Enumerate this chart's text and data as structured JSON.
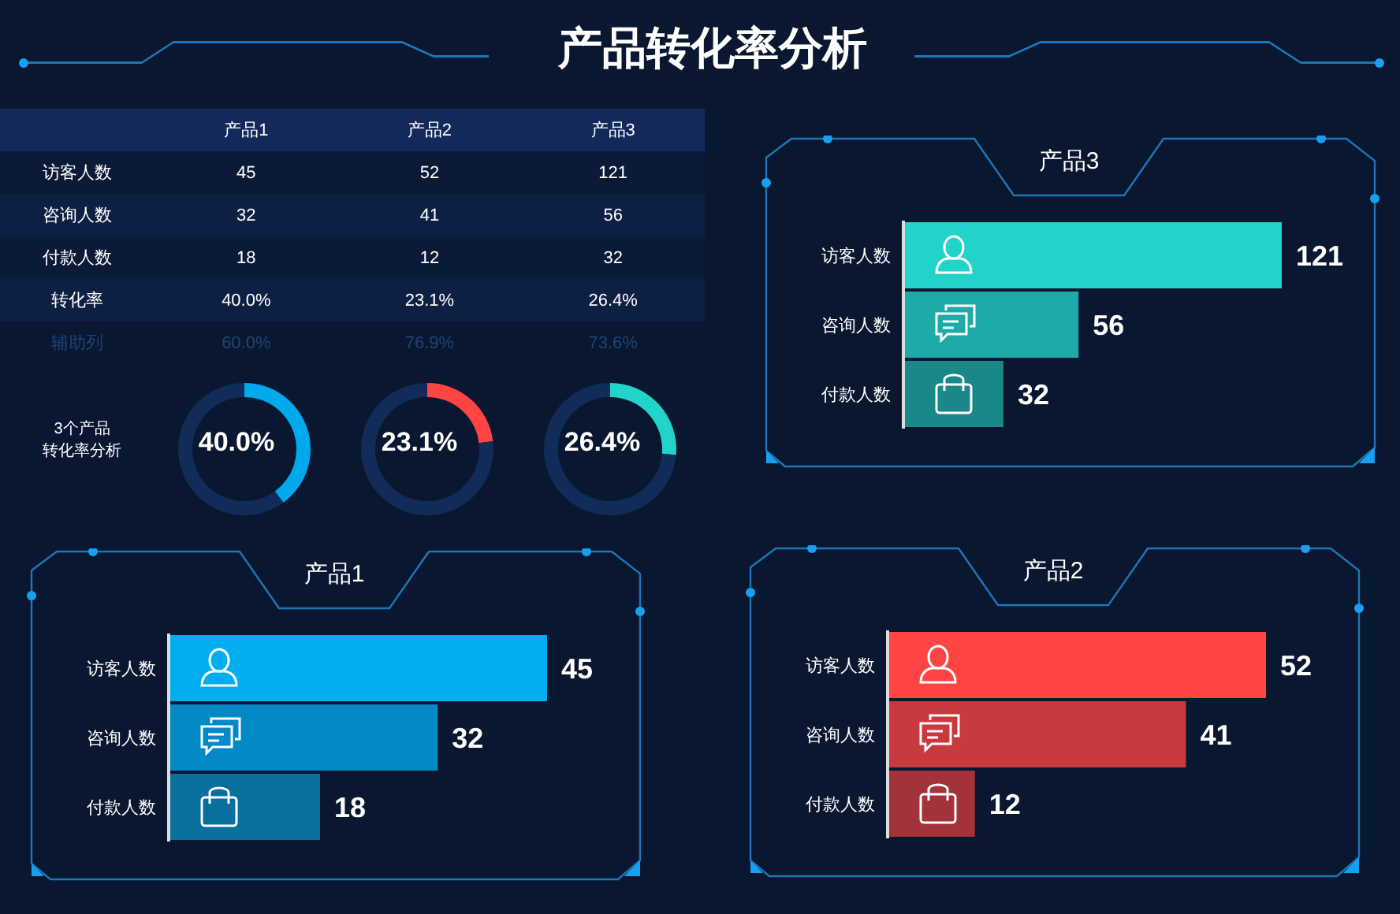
{
  "chart_data": [
    {
      "type": "other",
      "title": "产品转化率分析",
      "categories": [
        "产品1",
        "产品2",
        "产品3"
      ],
      "y_categories": [
        "访客人数",
        "咨询人数",
        "付款人数",
        "转化率",
        "辅助列"
      ],
      "cell_labels": [
        [
          "45",
          "52",
          "121"
        ],
        [
          "32",
          "41",
          "56"
        ],
        [
          "18",
          "12",
          "32"
        ],
        [
          "40.0%",
          "23.1%",
          "26.4%"
        ],
        [
          "60.0%",
          "76.9%",
          "73.6%"
        ]
      ]
    },
    {
      "type": "other",
      "annotations": [
        "3个产品",
        "转化率分析"
      ]
    },
    {
      "type": "donut",
      "categories": [
        null,
        null
      ],
      "values": [
        40.0,
        60.0
      ],
      "colors": [
        "#00a8ec",
        "#112c58"
      ],
      "annotations": [
        "40.0%"
      ]
    },
    {
      "type": "donut",
      "categories": [
        null,
        null
      ],
      "values": [
        23.1,
        76.9
      ],
      "colors": [
        "#ff4444",
        "#112c58"
      ],
      "annotations": [
        "23.1%"
      ]
    },
    {
      "type": "donut",
      "categories": [
        null,
        null
      ],
      "values": [
        26.4,
        73.6
      ],
      "colors": [
        "#22d3c9",
        "#112c58"
      ],
      "annotations": [
        "26.4%"
      ]
    },
    {
      "type": "bar",
      "orientation": "horizontal",
      "title": "产品3",
      "categories": [
        "访客人数",
        "咨询人数",
        "付款人数"
      ],
      "values": [
        121,
        56,
        32
      ],
      "colors": [
        "#22d3c9",
        "#1eaaa8",
        "#1a8788"
      ],
      "data_labels": true
    },
    {
      "type": "bar",
      "orientation": "horizontal",
      "title": "产品1",
      "categories": [
        "访客人数",
        "咨询人数",
        "付款人数"
      ],
      "values": [
        45,
        32,
        18
      ],
      "colors": [
        "#00aef0",
        "#0289c6",
        "#07709f"
      ],
      "data_labels": true
    },
    {
      "type": "bar",
      "orientation": "horizontal",
      "title": "产品2",
      "categories": [
        "访客人数",
        "咨询人数",
        "付款人数"
      ],
      "values": [
        52,
        41,
        12
      ],
      "colors": [
        "#ff4444",
        "#c93a3e",
        "#a3323a"
      ],
      "data_labels": true
    }
  ]
}
